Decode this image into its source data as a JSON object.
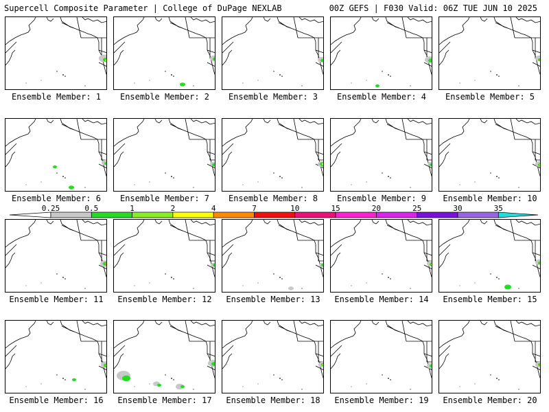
{
  "header": {
    "left": "Supercell Composite Parameter | College of DuPage NEXLAB",
    "right": "00Z GEFS | F030 Valid: 06Z TUE JUN 10 2025"
  },
  "panels": [
    {
      "label": "Ensemble Member: 1"
    },
    {
      "label": "Ensemble Member: 2"
    },
    {
      "label": "Ensemble Member: 3"
    },
    {
      "label": "Ensemble Member: 4"
    },
    {
      "label": "Ensemble Member: 5"
    },
    {
      "label": "Ensemble Member: 6"
    },
    {
      "label": "Ensemble Member: 7"
    },
    {
      "label": "Ensemble Member: 8"
    },
    {
      "label": "Ensemble Member: 9"
    },
    {
      "label": "Ensemble Member: 10"
    },
    {
      "label": "Ensemble Member: 11"
    },
    {
      "label": "Ensemble Member: 12"
    },
    {
      "label": "Ensemble Member: 13"
    },
    {
      "label": "Ensemble Member: 14"
    },
    {
      "label": "Ensemble Member: 15"
    },
    {
      "label": "Ensemble Member: 16"
    },
    {
      "label": "Ensemble Member: 17"
    },
    {
      "label": "Ensemble Member: 18"
    },
    {
      "label": "Ensemble Member: 19"
    },
    {
      "label": "Ensemble Member: 20"
    }
  ],
  "colorbar": {
    "ticks": [
      "0.25",
      "0.5",
      "1",
      "2",
      "4",
      "7",
      "10",
      "15",
      "20",
      "25",
      "30",
      "35"
    ],
    "colors": [
      "#ffffff",
      "#c8c8c8",
      "#22dd22",
      "#88ee22",
      "#ffff00",
      "#ff8c00",
      "#ee1111",
      "#ee1177",
      "#ff22cc",
      "#dd22ee",
      "#7711dd",
      "#9966dd",
      "#22dddd"
    ]
  }
}
